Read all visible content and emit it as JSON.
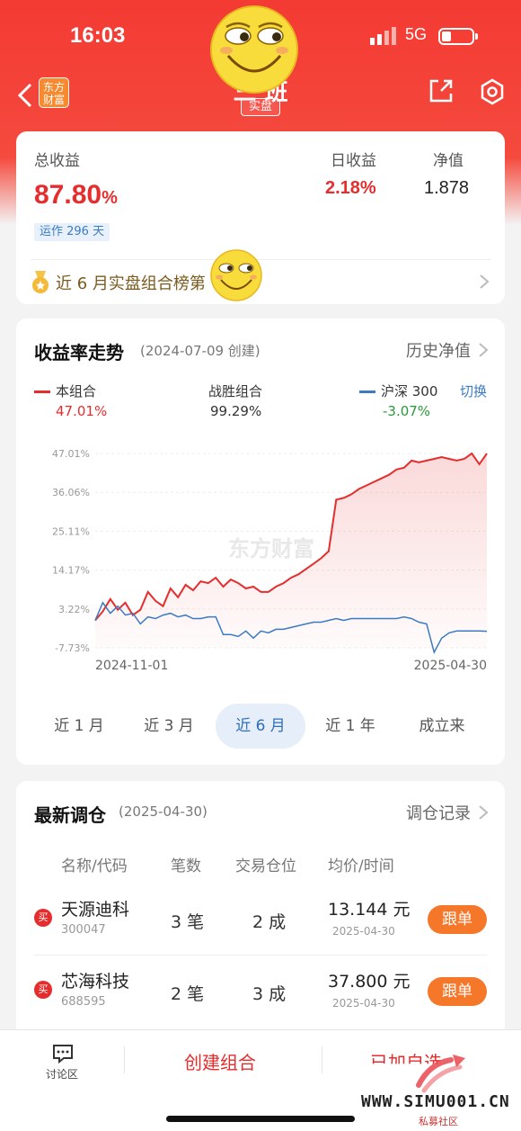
{
  "status_bar": {
    "time": "16:03",
    "network": "5G"
  },
  "nav": {
    "logo_text_1": "东方",
    "logo_text_2": "财富",
    "title": "三 班",
    "tag": "实盘"
  },
  "summary": {
    "total_label": "总收益",
    "total_value": "87.80",
    "total_unit": "%",
    "daily_label": "日收益",
    "daily_value": "2.18%",
    "nav_label": "净值",
    "nav_value": "1.878",
    "running": "运作 296 天",
    "rank": "近 6 月实盘组合榜第"
  },
  "trend": {
    "title": "收益率走势",
    "created": "(2024-07-09 创建)",
    "history": "历史净值",
    "legend": {
      "portfolio": {
        "label": "本组合",
        "value": "47.01%",
        "color": "#e52d2d"
      },
      "beat": {
        "label": "战胜组合",
        "value": "99.29%"
      },
      "index": {
        "label": "沪深 300",
        "value": "-3.07%",
        "color": "#3b7bc4"
      },
      "switch": "切换"
    },
    "watermark": "东方财富",
    "ranges": [
      "近 1 月",
      "近 3 月",
      "近 6 月",
      "近 1 年",
      "成立来"
    ],
    "active_range": 2
  },
  "chart_data": {
    "type": "line",
    "x_start": "2024-11-01",
    "x_end": "2025-04-30",
    "x_tick_labels": [
      "2024-11-01",
      "2025-04-30"
    ],
    "y_tick_labels": [
      "47.01%",
      "36.06%",
      "25.11%",
      "14.17%",
      "3.22%",
      "-7.73%"
    ],
    "ylim": [
      -7.73,
      47.01
    ],
    "series": [
      {
        "name": "本组合",
        "color": "#e52d2d",
        "values": [
          0,
          2.5,
          6,
          3,
          5,
          1.5,
          3,
          8,
          5.5,
          4,
          9,
          6.5,
          10,
          8.5,
          11,
          10.5,
          12,
          9.5,
          11.5,
          10.5,
          9,
          9.5,
          8,
          8,
          9.5,
          10.5,
          12,
          13,
          14.5,
          16,
          17.5,
          19.5,
          34,
          34.5,
          35.5,
          37,
          38,
          39,
          40,
          41,
          42.5,
          43,
          45,
          44.5,
          45,
          45.5,
          46,
          45.5,
          45,
          45.5,
          47,
          44,
          47.01
        ]
      },
      {
        "name": "沪深 300",
        "color": "#3b7bc4",
        "values": [
          0,
          5,
          2,
          4,
          1.5,
          2,
          -1,
          1,
          0.5,
          1.5,
          2,
          1,
          1.5,
          0.5,
          0.5,
          1,
          1,
          -4,
          -4,
          -4.5,
          -3,
          -5,
          -3,
          -3.5,
          -2.5,
          -2.5,
          -2,
          -1.5,
          -1,
          -0.5,
          -0.5,
          0,
          0.5,
          0,
          0.5,
          0.5,
          0.5,
          0.5,
          0.5,
          0.5,
          0.5,
          1,
          0.5,
          -0.5,
          -1,
          -9,
          -5,
          -3.5,
          -3,
          -3,
          -3,
          -3,
          -3.07
        ]
      }
    ]
  },
  "trades": {
    "title": "最新调仓",
    "date": "(2025-04-30)",
    "history": "调仓记录",
    "headers": [
      "名称/代码",
      "笔数",
      "交易仓位",
      "均价/时间"
    ],
    "rows": [
      {
        "badge": "买",
        "name": "天源迪科",
        "code": "300047",
        "count": "3 笔",
        "position": "2 成",
        "price": "13.144 元",
        "date": "2025-04-30",
        "action": "跟单"
      },
      {
        "badge": "买",
        "name": "芯海科技",
        "code": "688595",
        "count": "2 笔",
        "position": "3 成",
        "price": "37.800 元",
        "date": "2025-04-30",
        "action": "跟单"
      }
    ]
  },
  "bottom_bar": {
    "discuss": "讨论区",
    "create": "创建组合",
    "third": "已加自选"
  },
  "watermark": {
    "site": "WWW.SIMU001.CN",
    "sub": "私募社区"
  }
}
